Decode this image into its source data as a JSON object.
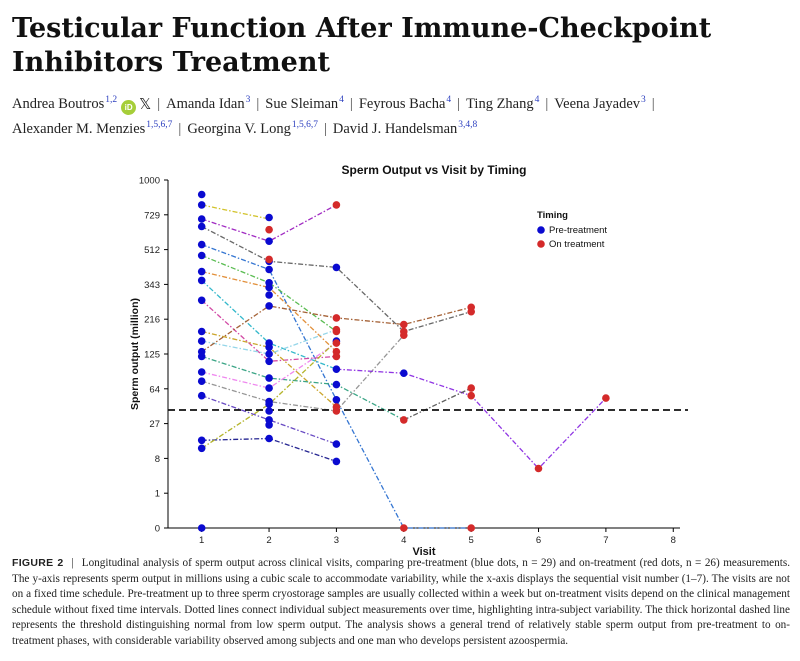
{
  "paper": {
    "title": "Testicular Function After Immune-Checkpoint Inhibitors Treatment",
    "authors": [
      {
        "name": "Andrea Boutros",
        "aff": "1,2",
        "orcid": true,
        "x": true
      },
      {
        "name": "Amanda Idan",
        "aff": "3"
      },
      {
        "name": "Sue Sleiman",
        "aff": "4"
      },
      {
        "name": "Feyrous Bacha",
        "aff": "4"
      },
      {
        "name": "Ting Zhang",
        "aff": "4"
      },
      {
        "name": "Veena Jayadev",
        "aff": "3"
      },
      {
        "name": "Alexander M. Menzies",
        "aff": "1,5,6,7"
      },
      {
        "name": "Georgina V. Long",
        "aff": "1,5,6,7"
      },
      {
        "name": "David J. Handelsman",
        "aff": "3,4,8"
      }
    ],
    "orcid_label": "iD",
    "x_label": "𝕏"
  },
  "caption": {
    "label": "FIGURE 2",
    "separator": "|",
    "text": "Longitudinal analysis of sperm output across clinical visits, comparing pre-treatment (blue dots, n = 29) and on-treatment (red dots, n = 26) measurements. The y-axis represents sperm output in millions using a cubic scale to accommodate variability, while the x-axis displays the sequential visit number (1–7). The visits are not on a fixed time schedule. Pre-treatment up to three sperm cryostorage samples are usually collected within a week but on-treatment visits depend on the clinical management schedule without fixed time intervals. Dotted lines connect individual subject measurements over time, highlighting intra-subject variability. The thick horizontal dashed line represents the threshold distinguishing normal from low sperm output. The analysis shows a general trend of relatively stable sperm output from pre-treatment to on-treatment phases, with considerable variability observed among subjects and one man who develops persistent azoospermia."
  },
  "chart_data": {
    "type": "scatter",
    "title": "Sperm Output vs Visit by Timing",
    "xlabel": "Visit",
    "ylabel": "Sperm output (million)",
    "xlim": [
      0.5,
      8.1
    ],
    "ylim": [
      0,
      1000
    ],
    "yscale": "cube-root",
    "xticks": [
      1,
      2,
      3,
      4,
      5,
      6,
      7,
      8
    ],
    "yticks": [
      0,
      1,
      8,
      27,
      64,
      125,
      216,
      343,
      512,
      729,
      1000
    ],
    "threshold": 39,
    "legend": {
      "title": "Timing",
      "position": "top-right"
    },
    "series": [
      {
        "name": "Pre-treatment",
        "color": "#0a0ad0",
        "points": [
          [
            1,
            880
          ],
          [
            1,
            800
          ],
          [
            1,
            700
          ],
          [
            1,
            650
          ],
          [
            1,
            540
          ],
          [
            1,
            480
          ],
          [
            1,
            400
          ],
          [
            1,
            360
          ],
          [
            1,
            280
          ],
          [
            1,
            180
          ],
          [
            1,
            155
          ],
          [
            1,
            130
          ],
          [
            1,
            120
          ],
          [
            1,
            90
          ],
          [
            1,
            75
          ],
          [
            1,
            55
          ],
          [
            1,
            16
          ],
          [
            1,
            12
          ],
          [
            1,
            0
          ],
          [
            2,
            710
          ],
          [
            2,
            560
          ],
          [
            2,
            450
          ],
          [
            2,
            410
          ],
          [
            2,
            350
          ],
          [
            2,
            330
          ],
          [
            2,
            300
          ],
          [
            2,
            260
          ],
          [
            2,
            150
          ],
          [
            2,
            140
          ],
          [
            2,
            125
          ],
          [
            2,
            110
          ],
          [
            2,
            80
          ],
          [
            2,
            65
          ],
          [
            2,
            48
          ],
          [
            2,
            45
          ],
          [
            2,
            38
          ],
          [
            2,
            30
          ],
          [
            2,
            26
          ],
          [
            2,
            17
          ],
          [
            3,
            420
          ],
          [
            3,
            155
          ],
          [
            3,
            95
          ],
          [
            3,
            70
          ],
          [
            3,
            50
          ],
          [
            3,
            14
          ],
          [
            3,
            7
          ],
          [
            4,
            88
          ]
        ]
      },
      {
        "name": "On treatment",
        "color": "#d42a2a",
        "points": [
          [
            2,
            630
          ],
          [
            2,
            460
          ],
          [
            3,
            800
          ],
          [
            3,
            220
          ],
          [
            3,
            185
          ],
          [
            3,
            180
          ],
          [
            3,
            150
          ],
          [
            3,
            130
          ],
          [
            3,
            120
          ],
          [
            3,
            42
          ],
          [
            3,
            38
          ],
          [
            4,
            200
          ],
          [
            4,
            180
          ],
          [
            4,
            170
          ],
          [
            4,
            30
          ],
          [
            4,
            0
          ],
          [
            5,
            255
          ],
          [
            5,
            240
          ],
          [
            5,
            65
          ],
          [
            5,
            55
          ],
          [
            5,
            0
          ],
          [
            6,
            5
          ],
          [
            7,
            52
          ]
        ]
      }
    ],
    "lines": [
      {
        "color": "#d0c020",
        "points": [
          [
            1,
            800
          ],
          [
            2,
            700
          ]
        ]
      },
      {
        "color": "#9b1fbf",
        "points": [
          [
            1,
            700
          ],
          [
            2,
            560
          ],
          [
            3,
            800
          ]
        ]
      },
      {
        "color": "#606060",
        "points": [
          [
            1,
            650
          ],
          [
            2,
            450
          ],
          [
            3,
            420
          ],
          [
            4,
            180
          ],
          [
            5,
            240
          ]
        ]
      },
      {
        "color": "#2a6fd0",
        "points": [
          [
            1,
            540
          ],
          [
            2,
            410
          ],
          [
            3,
            50
          ],
          [
            4,
            0
          ],
          [
            5,
            0
          ]
        ]
      },
      {
        "color": "#50b848",
        "points": [
          [
            1,
            480
          ],
          [
            2,
            350
          ],
          [
            3,
            180
          ]
        ]
      },
      {
        "color": "#e08a30",
        "points": [
          [
            1,
            400
          ],
          [
            2,
            330
          ],
          [
            3,
            130
          ]
        ]
      },
      {
        "color": "#28b4c8",
        "points": [
          [
            1,
            360
          ],
          [
            2,
            150
          ],
          [
            3,
            95
          ]
        ]
      },
      {
        "color": "#d040a0",
        "points": [
          [
            1,
            280
          ],
          [
            2,
            110
          ],
          [
            3,
            120
          ]
        ]
      },
      {
        "color": "#c8a020",
        "points": [
          [
            1,
            180
          ],
          [
            2,
            140
          ],
          [
            3,
            42
          ]
        ]
      },
      {
        "color": "#8fd4e8",
        "points": [
          [
            1,
            155
          ],
          [
            2,
            125
          ],
          [
            3,
            185
          ]
        ]
      },
      {
        "color": "#a05a2c",
        "points": [
          [
            1,
            130
          ],
          [
            2,
            260
          ],
          [
            3,
            220
          ],
          [
            4,
            200
          ],
          [
            5,
            255
          ]
        ]
      },
      {
        "color": "#30a080",
        "points": [
          [
            1,
            120
          ],
          [
            2,
            80
          ],
          [
            3,
            70
          ],
          [
            4,
            30
          ]
        ]
      },
      {
        "color": "#ee82ee",
        "points": [
          [
            1,
            90
          ],
          [
            2,
            65
          ],
          [
            3,
            150
          ]
        ]
      },
      {
        "color": "#909090",
        "points": [
          [
            1,
            75
          ],
          [
            2,
            48
          ],
          [
            3,
            38
          ],
          [
            4,
            170
          ]
        ]
      },
      {
        "color": "#6040c0",
        "points": [
          [
            1,
            55
          ],
          [
            2,
            30
          ],
          [
            3,
            14
          ]
        ]
      },
      {
        "color": "#1a1a8c",
        "points": [
          [
            1,
            16
          ],
          [
            2,
            17
          ],
          [
            3,
            7
          ]
        ]
      },
      {
        "color": "#b0b020",
        "points": [
          [
            1,
            12
          ],
          [
            2,
            45
          ],
          [
            3,
            155
          ]
        ]
      },
      {
        "color": "#8a2be2",
        "points": [
          [
            3,
            95
          ],
          [
            4,
            88
          ],
          [
            5,
            55
          ],
          [
            6,
            5
          ],
          [
            7,
            52
          ]
        ]
      },
      {
        "color": "#555555",
        "points": [
          [
            4,
            30
          ],
          [
            5,
            65
          ]
        ]
      }
    ]
  }
}
